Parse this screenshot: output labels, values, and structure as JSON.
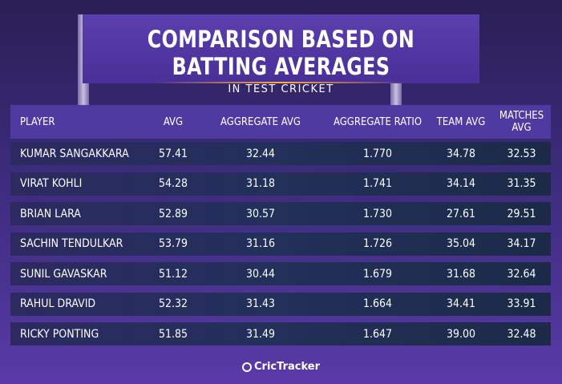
{
  "chart_data": {
    "type": "table",
    "title": "COMPARISON BASED ON BATTING AVERAGES",
    "subtitle": "IN TEST CRICKET",
    "columns": [
      "PLAYER",
      "AVG",
      "AGGREGATE AVG",
      "AGGREGATE RATIO",
      "TEAM AVG",
      "MATCHES AVG"
    ],
    "rows": [
      [
        "Kumar Sangakkara",
        "57.41",
        "32.44",
        "1.770",
        "34.78",
        "32.53"
      ],
      [
        "Virat Kohli",
        "54.28",
        "31.18",
        "1.741",
        "34.14",
        "31.35"
      ],
      [
        "Brian Lara",
        "52.89",
        "30.57",
        "1.730",
        "27.61",
        "29.51"
      ],
      [
        "Sachin Tendulkar",
        "53.79",
        "31.16",
        "1.726",
        "35.04",
        "34.17"
      ],
      [
        "Sunil Gavaskar",
        "51.12",
        "30.44",
        "1.679",
        "31.68",
        "32.64"
      ],
      [
        "Rahul Dravid",
        "52.32",
        "31.43",
        "1.664",
        "34.41",
        "33.91"
      ],
      [
        "Ricky Ponting",
        "51.85",
        "31.49",
        "1.647",
        "39.00",
        "32.48"
      ]
    ]
  },
  "branding": {
    "logo_text": "CricTracker",
    "logo_icon": "crictracker-logo-icon"
  }
}
